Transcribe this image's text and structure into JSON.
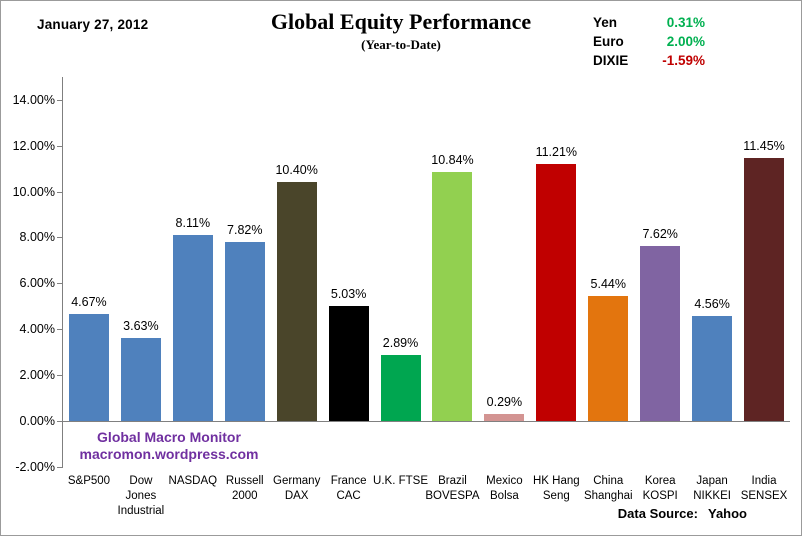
{
  "header": {
    "date": "January 27, 2012",
    "title": "Global Equity Performance",
    "subtitle": "(Year-to-Date)",
    "legend": [
      {
        "label": "Yen",
        "value": "0.31%",
        "value_color": "#00B050"
      },
      {
        "label": "Euro",
        "value": "2.00%",
        "value_color": "#00B050"
      },
      {
        "label": "DIXIE",
        "value": "-1.59%",
        "value_color": "#C00000"
      }
    ]
  },
  "watermark": {
    "line1": "Global Macro Monitor",
    "line2": "macromon.wordpress.com",
    "color": "#7030A0"
  },
  "footer": {
    "data_source_label": "Data Source:",
    "data_source_value": "Yahoo"
  },
  "chart_data": {
    "type": "bar",
    "title": "Global Equity Performance",
    "subtitle": "(Year-to-Date)",
    "categories": [
      "S&P500",
      "Dow Jones Industrial",
      "NASDAQ",
      "Russell 2000",
      "Germany DAX",
      "France CAC",
      "U.K. FTSE",
      "Brazil BOVESPA",
      "Mexico Bolsa",
      "HK Hang Seng",
      "China Shanghai",
      "Korea KOSPI",
      "Japan NIKKEI",
      "India SENSEX"
    ],
    "category_lines": [
      [
        "S&P500"
      ],
      [
        "Dow",
        "Jones",
        "Industrial"
      ],
      [
        "NASDAQ"
      ],
      [
        "Russell",
        "2000"
      ],
      [
        "Germany",
        "DAX"
      ],
      [
        "France",
        "CAC"
      ],
      [
        "U.K. FTSE"
      ],
      [
        "Brazil",
        "BOVESPA"
      ],
      [
        "Mexico",
        "Bolsa"
      ],
      [
        "HK Hang",
        "Seng"
      ],
      [
        "China",
        "Shanghai"
      ],
      [
        "Korea",
        "KOSPI"
      ],
      [
        "Japan",
        "NIKKEI"
      ],
      [
        "India",
        "SENSEX"
      ]
    ],
    "values": [
      4.67,
      3.63,
      8.11,
      7.82,
      10.4,
      5.03,
      2.89,
      10.84,
      0.29,
      11.21,
      5.44,
      7.62,
      4.56,
      11.45
    ],
    "value_labels": [
      "4.67%",
      "3.63%",
      "8.11%",
      "7.82%",
      "10.40%",
      "5.03%",
      "2.89%",
      "10.84%",
      "0.29%",
      "11.21%",
      "5.44%",
      "7.62%",
      "4.56%",
      "11.45%"
    ],
    "bar_colors": [
      "#4F81BD",
      "#4F81BD",
      "#4F81BD",
      "#4F81BD",
      "#4A452A",
      "#000000",
      "#00A650",
      "#92D050",
      "#D39492",
      "#C00000",
      "#E3750E",
      "#8064A2",
      "#4F81BD",
      "#5E2423"
    ],
    "ylabel": "",
    "xlabel": "",
    "ylim": [
      -2,
      14
    ],
    "ytick_values": [
      14,
      12,
      10,
      8,
      6,
      4,
      2,
      0,
      -2
    ],
    "ytick_labels": [
      "14.00%",
      "12.00%",
      "10.00%",
      "8.00%",
      "6.00%",
      "4.00%",
      "2.00%",
      "0.00%",
      "-2.00%"
    ],
    "grid": false,
    "legend_position": "none",
    "axis_color": "#808080"
  }
}
